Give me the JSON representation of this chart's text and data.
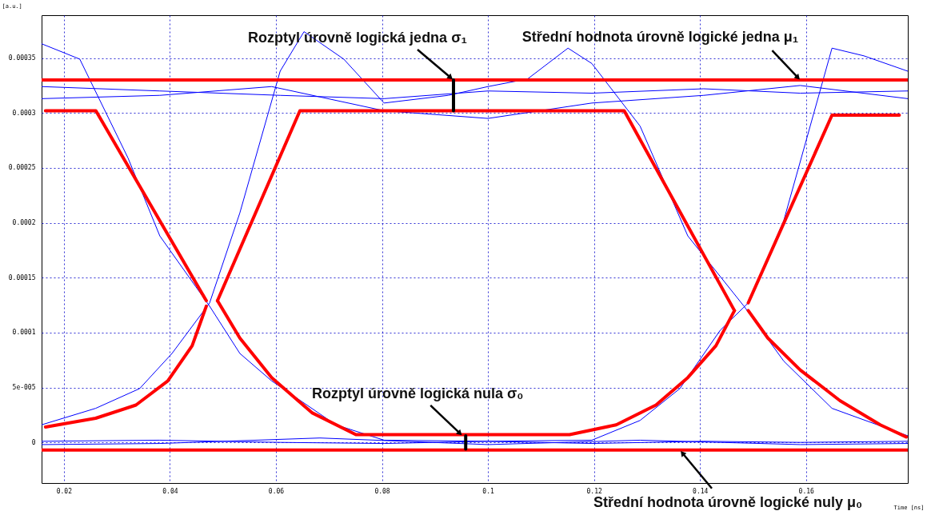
{
  "chart_data": {
    "type": "line",
    "xlabel": "Time [ns]",
    "ylabel": "[a.u.]",
    "xlim": [
      0.0158,
      0.1792
    ],
    "xticks": [
      0.02,
      0.04,
      0.06,
      0.08,
      0.1,
      0.12,
      0.14,
      0.16
    ],
    "ylim": [
      -3.7e-05,
      0.000389
    ],
    "yticks": [
      0,
      {
        "value": 5e-05,
        "label": "5e-005"
      },
      0.0001,
      0.00015,
      0.0002,
      0.00025,
      0.0003,
      0.00035
    ],
    "grid": true,
    "marker": "none",
    "line_style": "solid",
    "series": [
      {
        "color": "#0000ff",
        "x": [
          0.0158,
          0.023,
          0.0321,
          0.0381,
          0.0475,
          0.0532,
          0.0592,
          0.0713,
          0.0804,
          0.1,
          0.1196,
          0.1287,
          0.1362,
          0.1438,
          0.1491,
          0.1558,
          0.1649,
          0.1709,
          0.1792
        ],
        "values": [
          0.000363,
          0.000349,
          0.000259,
          0.000188,
          0.000124,
          8.1e-05,
          5.6e-05,
          1.6e-05,
          2e-06,
          1e-06,
          2e-06,
          2e-05,
          4.9e-05,
          0.000102,
          0.000127,
          0.000202,
          0.000359,
          0.000352,
          0.000338
        ]
      },
      {
        "color": "#0000ff",
        "x": [
          0.0158,
          0.026,
          0.0343,
          0.0404,
          0.0475,
          0.0532,
          0.0608,
          0.0653,
          0.0728,
          0.0804,
          0.0925,
          0.1,
          0.1075,
          0.1151,
          0.1196,
          0.1287,
          0.1377,
          0.1483,
          0.1558,
          0.1649,
          0.1792
        ],
        "values": [
          1.6e-05,
          3.1e-05,
          4.9e-05,
          8.1e-05,
          0.000127,
          0.000209,
          0.000338,
          0.000374,
          0.000349,
          0.000309,
          0.000316,
          0.000324,
          0.000331,
          0.000359,
          0.000345,
          0.000288,
          0.000188,
          0.000124,
          7.4e-05,
          3.1e-05,
          6e-06
        ]
      },
      {
        "color": "#0000ff",
        "x": [
          0.0158,
          0.0381,
          0.0608,
          0.0804,
          0.1,
          0.1196,
          0.1407,
          0.1589,
          0.1792
        ],
        "values": [
          0.000324,
          0.00032,
          0.000316,
          0.000313,
          0.00032,
          0.000318,
          0.000322,
          0.000318,
          0.00032
        ]
      },
      {
        "color": "#0000ff",
        "x": [
          0.0158,
          0.0381,
          0.0592,
          0.0804,
          0.1,
          0.1196,
          0.1407,
          0.1589,
          0.1792
        ],
        "values": [
          0.000313,
          0.000316,
          0.000324,
          0.000302,
          0.000295,
          0.000309,
          0.000316,
          0.000325,
          0.000313
        ]
      },
      {
        "color": "#0000ff",
        "x": [
          0.0158,
          0.0381,
          0.0608,
          0.0804,
          0.1,
          0.1196,
          0.1407,
          0.1589,
          0.1792
        ],
        "values": [
          1e-06,
          2e-06,
          0,
          -1e-06,
          1e-06,
          -1e-06,
          1e-06,
          0,
          1e-06
        ]
      },
      {
        "color": "#0000ff",
        "x": [
          0.0158,
          0.0381,
          0.0683,
          0.1,
          0.1287,
          0.1589,
          0.1792
        ],
        "values": [
          -2e-06,
          -1e-06,
          4e-06,
          -2e-06,
          2e-06,
          -2e-06,
          -1e-06
        ]
      },
      {
        "color": "#ff0000",
        "x": [
          0.0158,
          0.1792
        ],
        "values": [
          0.00033,
          0.00033
        ]
      },
      {
        "color": "#ff0000",
        "x": [
          0.0158,
          0.1792
        ],
        "values": [
          -7e-06,
          -7e-06
        ]
      },
      {
        "color": "#ff0000",
        "x": [
          0.01653,
          0.02604,
          0.04687
        ],
        "values": [
          0.000302,
          0.000302,
          0.000129
        ]
      },
      {
        "color": "#ff0000",
        "x": [
          0.01653,
          0.026,
          0.0336,
          0.0396,
          0.0442,
          0.04687
        ],
        "values": [
          1.4e-05,
          2.2e-05,
          3.4e-05,
          5.6e-05,
          8.8e-05,
          0.000124
        ]
      },
      {
        "color": "#ff0000",
        "x": [
          0.04898,
          0.0532,
          0.0592,
          0.0668,
          0.07509,
          0.1154,
          0.1242,
          0.1317,
          0.1377,
          0.143,
          0.1465
        ],
        "values": [
          0.000129,
          9.5e-05,
          5.9e-05,
          2.7e-05,
          7e-06,
          7e-06,
          1.6e-05,
          3.4e-05,
          5.9e-05,
          8.8e-05,
          0.00012
        ]
      },
      {
        "color": "#ff0000",
        "x": [
          0.04898,
          0.06453,
          0.1257,
          0.1465
        ],
        "values": [
          0.000129,
          0.000302,
          0.000302,
          0.00012
        ]
      },
      {
        "color": "#ff0000",
        "x": [
          0.1491,
          0.1649,
          0.1776
        ],
        "values": [
          0.000127,
          0.000298,
          0.000298
        ]
      },
      {
        "color": "#ff0000",
        "x": [
          0.1491,
          0.1528,
          0.1589,
          0.1664,
          0.174,
          0.1789
        ],
        "values": [
          0.00012,
          9.5e-05,
          6.6e-05,
          3.8e-05,
          1.6e-05,
          5e-06
        ]
      },
      {
        "color": "#000000",
        "x": [
          0.0935,
          0.0935
        ],
        "values": [
          0.00033,
          0.000302
        ]
      },
      {
        "color": "#000000",
        "x": [
          0.0958,
          0.0958
        ],
        "values": [
          6e-06,
          -6e-06
        ]
      }
    ],
    "annotations": [
      {
        "text": "Rozptyl úrovně logická jedna σ₁",
        "x": 0.0935,
        "y": 0.00033
      },
      {
        "text": "Střední hodnota úrovně logické jedna μ₁",
        "x": 0.1589,
        "y": 0.00033
      },
      {
        "text": "Rozptyl úrovně logická nula σ₀",
        "x": 0.0952,
        "y": 6e-06
      },
      {
        "text": "Střední hodnota úrovně logické nuly μ₀",
        "x": 0.1362,
        "y": -7e-06
      }
    ]
  }
}
